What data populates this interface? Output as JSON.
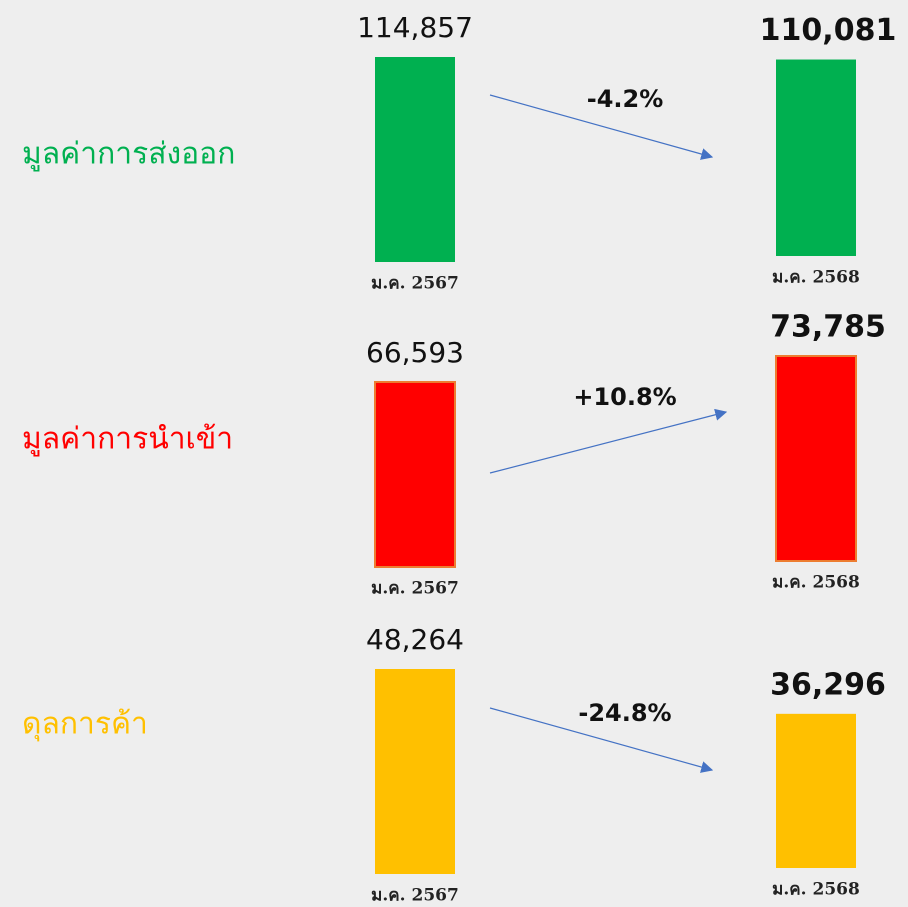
{
  "chart_data": [
    {
      "type": "bar",
      "title": "มูลค่าการส่งออก",
      "categories": [
        "ม.ค. 2567",
        "ม.ค. 2568"
      ],
      "values": [
        114857,
        110081
      ],
      "value_labels": [
        "114,857",
        "110,081"
      ],
      "color": "#00b050",
      "annotation": "-4.2%"
    },
    {
      "type": "bar",
      "title": "มูลค่าการนำเข้า",
      "categories": [
        "ม.ค. 2567",
        "ม.ค. 2568"
      ],
      "values": [
        66593,
        73785
      ],
      "value_labels": [
        "66,593",
        "73,785"
      ],
      "color": "#ff0000",
      "annotation": "+10.8%"
    },
    {
      "type": "bar",
      "title": "ดุลการค้า",
      "categories": [
        "ม.ค. 2567",
        "ม.ค. 2568"
      ],
      "values": [
        48264,
        36296
      ],
      "value_labels": [
        "48,264",
        "36,296"
      ],
      "color": "#ffc000",
      "annotation": "-24.8%"
    }
  ]
}
